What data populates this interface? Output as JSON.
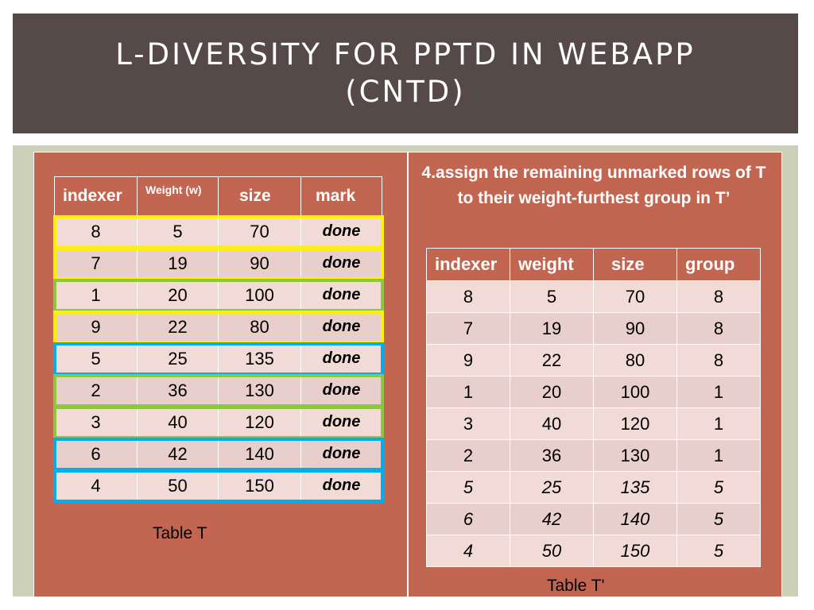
{
  "title": "L-DIVERSITY FOR PPTD IN WEBAPP (CNTD)",
  "instruction": "4.assign the remaining unmarked rows of T to their weight-furthest  group in T’",
  "table_t": {
    "caption": "Table T",
    "headers": [
      "indexer",
      "Weight (w)",
      "size",
      "mark"
    ],
    "rows": [
      [
        "8",
        "5",
        "70",
        "done"
      ],
      [
        "7",
        "19",
        "90",
        "done"
      ],
      [
        "1",
        "20",
        "100",
        "done"
      ],
      [
        "9",
        "22",
        "80",
        "done"
      ],
      [
        "5",
        "25",
        "135",
        "done"
      ],
      [
        "2",
        "36",
        "130",
        "done"
      ],
      [
        "3",
        "40",
        "120",
        "done"
      ],
      [
        "6",
        "42",
        "140",
        "done"
      ],
      [
        "4",
        "50",
        "150",
        "done"
      ]
    ],
    "outline_colors": [
      "#fff200",
      "#fff200",
      "#8dc63f",
      "#fff200",
      "#00aeef",
      "#8dc63f",
      "#8dc63f",
      "#00aeef",
      "#00aeef"
    ]
  },
  "table_t2": {
    "caption": "Table T'",
    "headers": [
      "indexer",
      "weight",
      "size",
      "group"
    ],
    "rows": [
      [
        "8",
        "5",
        "70",
        "8"
      ],
      [
        "7",
        "19",
        "90",
        "8"
      ],
      [
        "9",
        "22",
        "80",
        "8"
      ],
      [
        "1",
        "20",
        "100",
        "1"
      ],
      [
        "3",
        "40",
        "120",
        "1"
      ],
      [
        "2",
        "36",
        "130",
        "1"
      ],
      [
        "5",
        "25",
        "135",
        "5"
      ],
      [
        "6",
        "42",
        "140",
        "5"
      ],
      [
        "4",
        "50",
        "150",
        "5"
      ]
    ]
  },
  "colors": {
    "title_bar": "#554a47",
    "panel": "#c36651",
    "frame": "#cdd0b9",
    "cell_light": "#f2dad6",
    "outline_yellow": "#fff200",
    "outline_green": "#8dc63f",
    "outline_blue": "#00aeef"
  }
}
